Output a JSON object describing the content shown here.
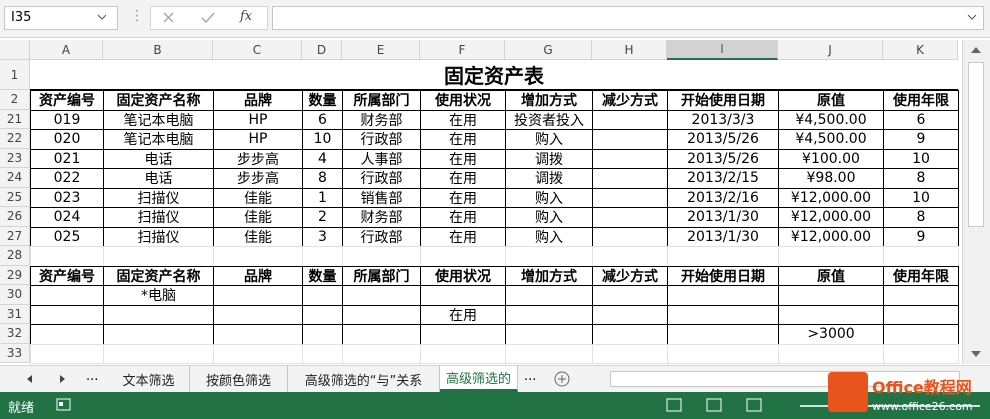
{
  "formula_bar": {
    "name_box": "I35",
    "fx": "fx"
  },
  "sheet": {
    "columns": [
      "A",
      "B",
      "C",
      "D",
      "E",
      "F",
      "G",
      "H",
      "I",
      "J",
      "K"
    ],
    "selected_column": "I",
    "title_row": {
      "row": 1,
      "title": "固定资产表"
    },
    "rows": [
      {
        "row": 2,
        "header": true,
        "cells": {
          "A": "资产编号",
          "B": "固定资产名称",
          "C": "品牌",
          "D": "数量",
          "E": "所属部门",
          "F": "使用状况",
          "G": "增加方式",
          "H": "减少方式",
          "I": "开始使用日期",
          "J": "原值",
          "K": "使用年限"
        }
      },
      {
        "row": 21,
        "cells": {
          "A": "019",
          "B": "笔记本电脑",
          "C": "HP",
          "D": "6",
          "E": "财务部",
          "F": "在用",
          "G": "投资者投入",
          "I": "2013/3/3",
          "J": "¥4,500.00",
          "K": "6"
        }
      },
      {
        "row": 22,
        "cells": {
          "A": "020",
          "B": "笔记本电脑",
          "C": "HP",
          "D": "10",
          "E": "行政部",
          "F": "在用",
          "G": "购入",
          "I": "2013/5/26",
          "J": "¥4,500.00",
          "K": "9"
        }
      },
      {
        "row": 23,
        "cells": {
          "A": "021",
          "B": "电话",
          "C": "步步高",
          "D": "4",
          "E": "人事部",
          "F": "在用",
          "G": "调拨",
          "I": "2013/5/26",
          "J": "¥100.00",
          "K": "10"
        }
      },
      {
        "row": 24,
        "cells": {
          "A": "022",
          "B": "电话",
          "C": "步步高",
          "D": "8",
          "E": "行政部",
          "F": "在用",
          "G": "调拨",
          "I": "2013/2/15",
          "J": "¥98.00",
          "K": "8"
        }
      },
      {
        "row": 25,
        "cells": {
          "A": "023",
          "B": "扫描仪",
          "C": "佳能",
          "D": "1",
          "E": "销售部",
          "F": "在用",
          "G": "购入",
          "I": "2013/2/16",
          "J": "¥12,000.00",
          "K": "10"
        }
      },
      {
        "row": 26,
        "cells": {
          "A": "024",
          "B": "扫描仪",
          "C": "佳能",
          "D": "2",
          "E": "财务部",
          "F": "在用",
          "G": "购入",
          "I": "2013/1/30",
          "J": "¥12,000.00",
          "K": "8"
        }
      },
      {
        "row": 27,
        "cells": {
          "A": "025",
          "B": "扫描仪",
          "C": "佳能",
          "D": "3",
          "E": "行政部",
          "F": "在用",
          "G": "购入",
          "I": "2013/1/30",
          "J": "¥12,000.00",
          "K": "9"
        }
      },
      {
        "row": 28,
        "cells": {}
      },
      {
        "row": 29,
        "header": true,
        "cells": {
          "A": "资产编号",
          "B": "固定资产名称",
          "C": "品牌",
          "D": "数量",
          "E": "所属部门",
          "F": "使用状况",
          "G": "增加方式",
          "H": "减少方式",
          "I": "开始使用日期",
          "J": "原值",
          "K": "使用年限"
        }
      },
      {
        "row": 30,
        "cells": {
          "B": "*电脑"
        }
      },
      {
        "row": 31,
        "cells": {
          "F": "在用"
        }
      },
      {
        "row": 32,
        "cells": {
          "J": ">3000"
        }
      },
      {
        "row": 33,
        "cells": {}
      }
    ]
  },
  "tabs": {
    "overflow": "...",
    "sheets": [
      "文本筛选",
      "按颜色筛选",
      "高级筛选的“与”关系",
      "高级筛选的"
    ],
    "active": 3
  },
  "status": {
    "text": "就绪"
  },
  "watermark": {
    "name": "Office教程网",
    "url": "www.office26.com"
  }
}
